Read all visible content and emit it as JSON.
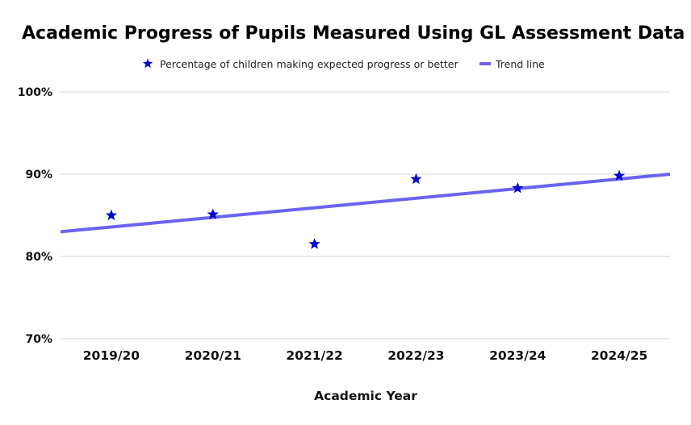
{
  "chart_data": {
    "type": "scatter",
    "title": "Academic Progress of Pupils Measured Using GL Assessment Data",
    "xlabel": "Academic Year",
    "ylabel": "",
    "categories": [
      "2019/20",
      "2020/21",
      "2021/22",
      "2022/23",
      "2023/24",
      "2024/25"
    ],
    "ylim": [
      70,
      100
    ],
    "yticks": [
      70,
      80,
      90,
      100
    ],
    "ytick_labels": [
      "70%",
      "80%",
      "90%",
      "100%"
    ],
    "grid": true,
    "legend_position": "top",
    "series": [
      {
        "name": "Percentage of children making expected progress or better",
        "marker": "star",
        "color": "#0000cc",
        "values": [
          85.0,
          85.1,
          81.5,
          89.4,
          88.3,
          89.8
        ]
      }
    ],
    "trendline": {
      "name": "Trend line",
      "color": "#6b63f0",
      "start": 83.0,
      "end": 90.0
    }
  }
}
